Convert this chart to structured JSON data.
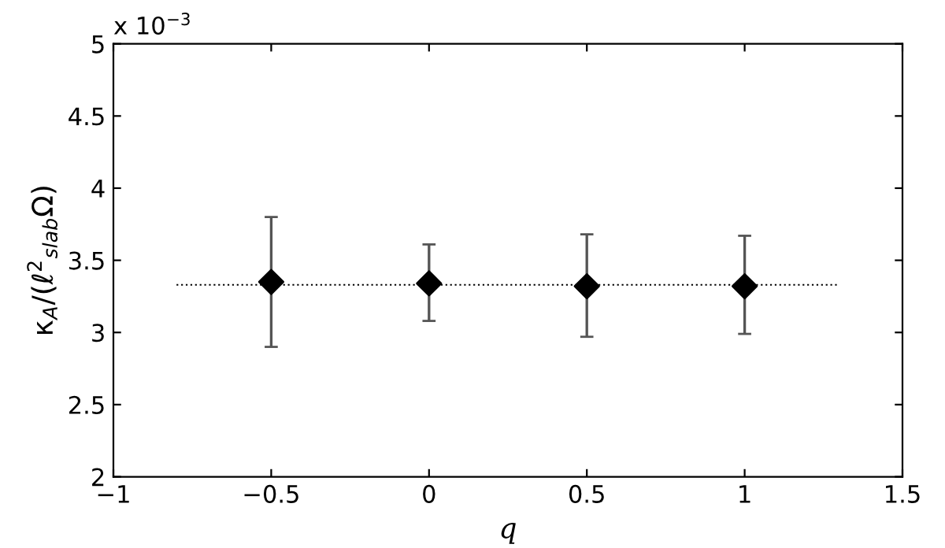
{
  "chart_data": {
    "type": "scatter",
    "xlabel": "q",
    "ylabel": "κ$_{A}$/(ℓ$^{2}$$_{slab}$Ω)",
    "annotations": [
      "x 10$^{−3}$"
    ],
    "x": [
      -0.5,
      0,
      0.5,
      1
    ],
    "series": [
      {
        "color": "#000000",
        "marker": "diamond",
        "values": [
          3.35,
          3.34,
          3.32,
          3.32
        ],
        "errors": [
          [
            2.9,
            3.8
          ],
          [
            3.08,
            3.61
          ],
          [
            2.97,
            3.68
          ],
          [
            2.99,
            3.67
          ]
        ]
      },
      {
        "type": "line",
        "color": "#000000",
        "line_style": "dotted",
        "marker": "none",
        "x": [
          -0.8,
          1.3
        ],
        "values": [
          3.33,
          3.33
        ]
      }
    ],
    "xlim": [
      -1,
      1.5
    ],
    "xticks": [
      -1,
      -0.5,
      0,
      0.5,
      1,
      1.5
    ],
    "ylim": [
      2,
      5
    ],
    "yticks": [
      2,
      2.5,
      3,
      3.5,
      4,
      4.5,
      5
    ],
    "grid": false,
    "legend": false
  }
}
